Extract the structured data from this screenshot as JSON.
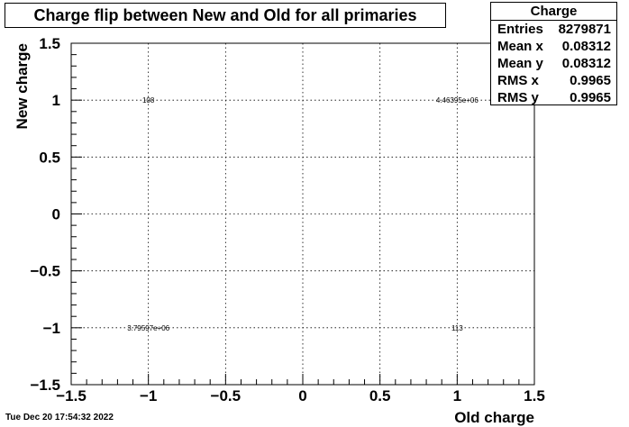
{
  "chart_data": {
    "type": "heatmap",
    "title": "Charge flip between New and Old for all primaries",
    "xlabel": "Old charge",
    "ylabel": "New charge",
    "xlim": [
      -1.5,
      1.5
    ],
    "ylim": [
      -1.5,
      1.5
    ],
    "grid": true,
    "x_ticks": [
      -1.5,
      -1,
      -0.5,
      0,
      0.5,
      1,
      1.5
    ],
    "y_ticks": [
      -1.5,
      -1,
      -0.5,
      0,
      0.5,
      1,
      1.5
    ],
    "x_tick_labels": [
      "−1.5",
      "−1",
      "−0.5",
      "0",
      "0.5",
      "1",
      "1.5"
    ],
    "y_tick_labels": [
      "−1.5",
      "−1",
      "−0.5",
      "0",
      "0.5",
      "1",
      "1.5"
    ],
    "cells": [
      {
        "x": -1,
        "y": 1,
        "label": "108"
      },
      {
        "x": 1,
        "y": 1,
        "label": "4.46395e+06"
      },
      {
        "x": -1,
        "y": -1,
        "label": "3.79597e+06"
      },
      {
        "x": 1,
        "y": -1,
        "label": "113"
      }
    ]
  },
  "stats": {
    "header": "Charge",
    "rows": [
      {
        "label": "Entries",
        "value": "8279871"
      },
      {
        "label": "Mean x",
        "value": "0.08312"
      },
      {
        "label": "Mean y",
        "value": "0.08312"
      },
      {
        "label": "RMS x",
        "value": "0.9965"
      },
      {
        "label": "RMS y",
        "value": "0.9965"
      }
    ]
  },
  "footer": {
    "timestamp": "Tue Dec 20 17:54:32 2022"
  }
}
